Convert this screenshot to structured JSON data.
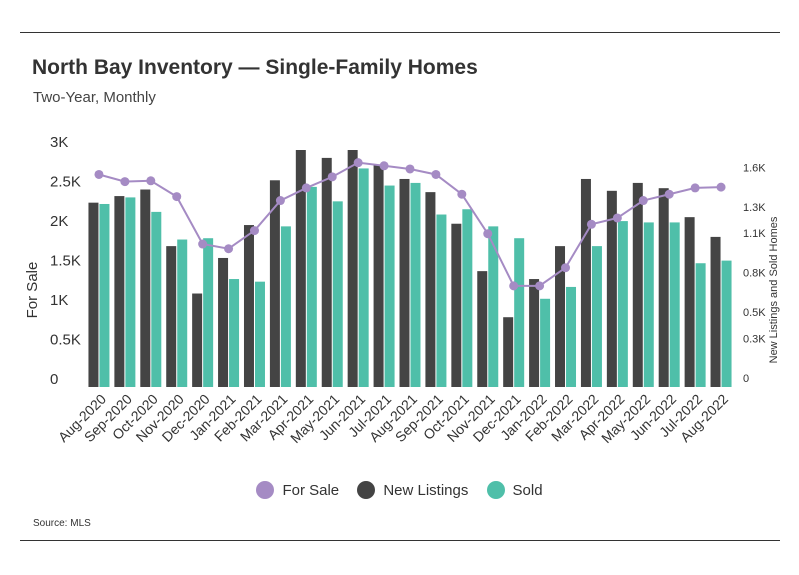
{
  "title": "North Bay Inventory — Single-Family Homes",
  "subtitle": "Two-Year, Monthly",
  "source": "Source:  MLS",
  "colors": {
    "for_sale": "#a58bc4",
    "new_listings": "#444444",
    "sold": "#4fbfa9"
  },
  "chart_data": {
    "type": "bar",
    "categories": [
      "Aug-2020",
      "Sep-2020",
      "Oct-2020",
      "Nov-2020",
      "Dec-2020",
      "Jan-2021",
      "Feb-2021",
      "Mar-2021",
      "Apr-2021",
      "May-2021",
      "Jun-2021",
      "Jul-2021",
      "Aug-2021",
      "Sep-2021",
      "Oct-2021",
      "Nov-2021",
      "Dec-2021",
      "Jan-2022",
      "Feb-2022",
      "Mar-2022",
      "Apr-2022",
      "May-2022",
      "Jun-2022",
      "Jul-2022",
      "Aug-2022"
    ],
    "series": [
      {
        "name": "For Sale",
        "type": "line",
        "axis": "left",
        "values": [
          2690,
          2600,
          2610,
          2410,
          1810,
          1750,
          1980,
          2360,
          2520,
          2660,
          2840,
          2800,
          2760,
          2690,
          2440,
          1940,
          1280,
          1280,
          1510,
          2060,
          2140,
          2360,
          2440,
          2520,
          2530
        ]
      },
      {
        "name": "New Listings",
        "type": "bar",
        "axis": "right",
        "values": [
          1400,
          1450,
          1500,
          1070,
          710,
          980,
          1230,
          1570,
          1800,
          1740,
          1800,
          1690,
          1580,
          1480,
          1240,
          880,
          530,
          820,
          1070,
          1580,
          1490,
          1550,
          1510,
          1290,
          1140
        ]
      },
      {
        "name": "Sold",
        "type": "bar",
        "axis": "right",
        "values": [
          1390,
          1440,
          1330,
          1120,
          1130,
          820,
          800,
          1220,
          1520,
          1410,
          1660,
          1530,
          1550,
          1310,
          1350,
          1220,
          1130,
          670,
          760,
          1070,
          1260,
          1250,
          1250,
          940,
          960
        ]
      }
    ],
    "y_left": {
      "label": "For Sale",
      "lim": [
        0,
        3000
      ],
      "ticks": [
        0,
        500,
        1000,
        1500,
        2000,
        2500,
        3000
      ],
      "tick_labels": [
        "0",
        "0.5K",
        "1K",
        "1.5K",
        "2K",
        "2.5K",
        "3K"
      ]
    },
    "y_right": {
      "label": "New Listings and Sold Homes",
      "lim": [
        0,
        1800
      ],
      "ticks": [
        0,
        300,
        500,
        800,
        1100,
        1300,
        1600
      ],
      "tick_labels": [
        "0",
        "0.3K",
        "0.5K",
        "0.8K",
        "1.1K",
        "1.3K",
        "1.6K"
      ]
    },
    "legend_position": "bottom",
    "grid": false
  }
}
